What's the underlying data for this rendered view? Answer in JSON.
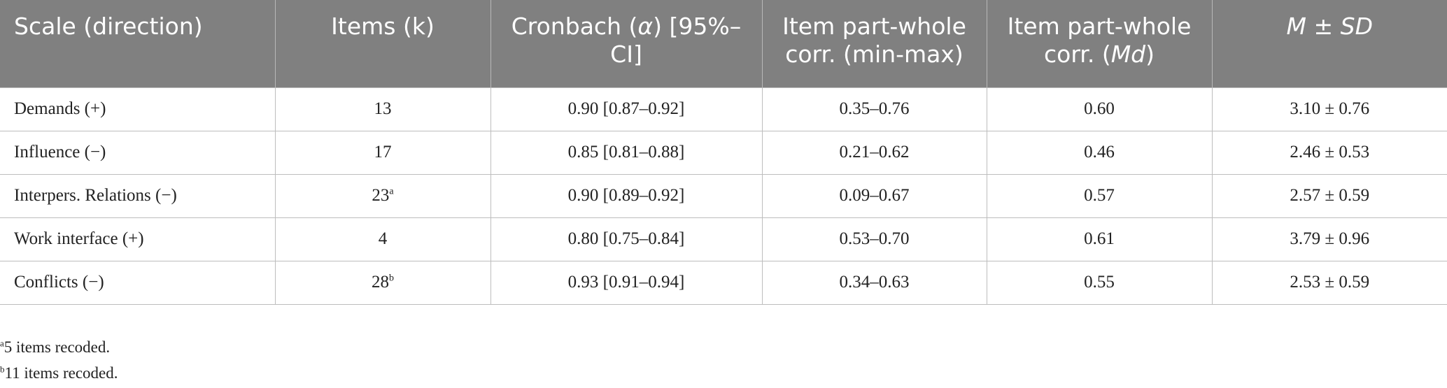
{
  "headers": {
    "scale": "Scale (direction)",
    "items": "Items (k)",
    "cronbach_pre": "Cronbach (",
    "cronbach_alpha": "α",
    "cronbach_post": ") [95%–CI]",
    "corr_range": "Item part-whole corr. (min-max)",
    "corr_md_pre": "Item part-whole corr. (",
    "corr_md_md": "Md",
    "corr_md_post": ")",
    "msd_m": "M",
    "msd_pm": " ± ",
    "msd_sd": "SD"
  },
  "rows": [
    {
      "scale": "Demands (+)",
      "items": "13",
      "items_sup": "",
      "alpha": "0.90 [0.87–0.92]",
      "range": "0.35–0.76",
      "md": "0.60",
      "msd": "3.10 ± 0.76"
    },
    {
      "scale": "Influence (−)",
      "items": "17",
      "items_sup": "",
      "alpha": "0.85 [0.81–0.88]",
      "range": "0.21–0.62",
      "md": "0.46",
      "msd": "2.46 ± 0.53"
    },
    {
      "scale": "Interpers. Relations (−)",
      "items": "23",
      "items_sup": "a",
      "alpha": "0.90 [0.89–0.92]",
      "range": "0.09–0.67",
      "md": "0.57",
      "msd": "2.57 ± 0.59"
    },
    {
      "scale": "Work interface (+)",
      "items": "4",
      "items_sup": "",
      "alpha": "0.80 [0.75–0.84]",
      "range": "0.53–0.70",
      "md": "0.61",
      "msd": "3.79 ± 0.96"
    },
    {
      "scale": "Conflicts (−)",
      "items": "28",
      "items_sup": "b",
      "alpha": "0.93 [0.91–0.94]",
      "range": "0.34–0.63",
      "md": "0.55",
      "msd": "2.53 ± 0.59"
    }
  ],
  "footnotes": [
    {
      "mark": "a",
      "text": "5 items recoded."
    },
    {
      "mark": "b",
      "text": "11 items recoded."
    }
  ],
  "colors": {
    "header_bg": "#808080",
    "header_text": "#ffffff",
    "grid": "#bdbdbd",
    "body_text": "#222222"
  }
}
